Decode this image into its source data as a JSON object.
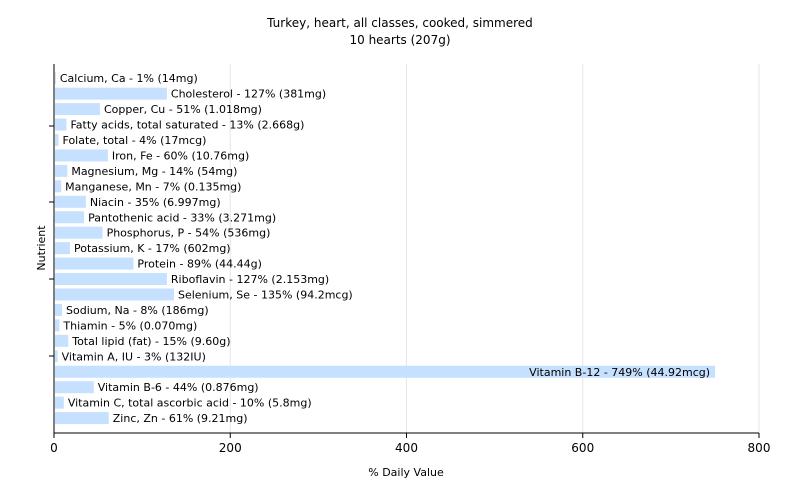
{
  "chart_data": {
    "type": "bar",
    "orientation": "horizontal",
    "title": "Turkey, heart, all classes, cooked, simmered",
    "subtitle": "10 hearts (207g)",
    "xlabel": "% Daily Value",
    "ylabel": "Nutrient",
    "xlim": [
      0,
      800
    ],
    "xticks": [
      0,
      200,
      400,
      600,
      800
    ],
    "grid": true,
    "bar_color": "#c6e0ff",
    "categories": [
      "Calcium, Ca",
      "Cholesterol",
      "Copper, Cu",
      "Fatty acids, total saturated",
      "Folate, total",
      "Iron, Fe",
      "Magnesium, Mg",
      "Manganese, Mn",
      "Niacin",
      "Pantothenic acid",
      "Phosphorus, P",
      "Potassium, K",
      "Protein",
      "Riboflavin",
      "Selenium, Se",
      "Sodium, Na",
      "Thiamin",
      "Total lipid (fat)",
      "Vitamin A, IU",
      "Vitamin B-12",
      "Vitamin B-6",
      "Vitamin C, total ascorbic acid",
      "Zinc, Zn"
    ],
    "values": [
      1,
      127,
      51,
      13,
      4,
      60,
      14,
      7,
      35,
      33,
      54,
      17,
      89,
      127,
      135,
      8,
      5,
      15,
      3,
      749,
      44,
      10,
      61
    ],
    "labels": [
      "Calcium, Ca - 1% (14mg)",
      "Cholesterol - 127% (381mg)",
      "Copper, Cu - 51% (1.018mg)",
      "Fatty acids, total saturated - 13% (2.668g)",
      "Folate, total - 4% (17mcg)",
      "Iron, Fe - 60% (10.76mg)",
      "Magnesium, Mg - 14% (54mg)",
      "Manganese, Mn - 7% (0.135mg)",
      "Niacin - 35% (6.997mg)",
      "Pantothenic acid - 33% (3.271mg)",
      "Phosphorus, P - 54% (536mg)",
      "Potassium, K - 17% (602mg)",
      "Protein - 89% (44.44g)",
      "Riboflavin - 127% (2.153mg)",
      "Selenium, Se - 135% (94.2mcg)",
      "Sodium, Na - 8% (186mg)",
      "Thiamin - 5% (0.070mg)",
      "Total lipid (fat) - 15% (9.60g)",
      "Vitamin A, IU - 3% (132IU)",
      "Vitamin B-12 - 749% (44.92mcg)",
      "Vitamin B-6 - 44% (0.876mg)",
      "Vitamin C, total ascorbic acid - 10% (5.8mg)",
      "Zinc, Zn - 61% (9.21mg)"
    ]
  }
}
